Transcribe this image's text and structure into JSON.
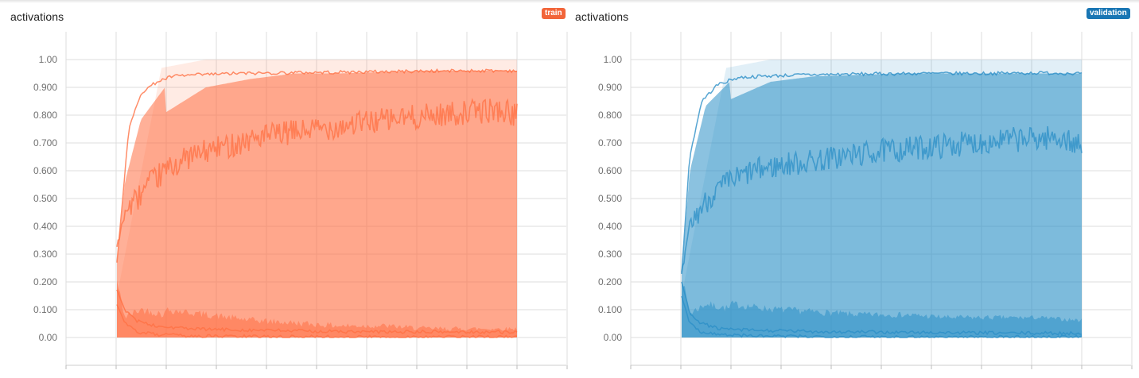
{
  "panels": [
    {
      "id": "train",
      "title": "activations",
      "run_label": "train",
      "run_color": "#f2653a",
      "series_color": "#ff7043"
    },
    {
      "id": "validation",
      "title": "activations",
      "run_label": "validation",
      "run_color": "#1976b4",
      "series_color": "#2c8fc7"
    }
  ],
  "chart_data": [
    {
      "type": "area",
      "run": "train",
      "title": "activations",
      "y_tick_labels": [
        "0.00",
        "0.100",
        "0.200",
        "0.300",
        "0.400",
        "0.500",
        "0.600",
        "0.700",
        "0.800",
        "0.900",
        "1.00"
      ],
      "ylim": [
        0,
        1
      ],
      "grid": true,
      "x_ticks_labeled": false,
      "bands": [
        {
          "name": "max-min",
          "lower": [
            0.0,
            0.0,
            0.0,
            0.0,
            0.0,
            0.0,
            0.0,
            0.0,
            0.0,
            0.0
          ],
          "upper": [
            0.15,
            0.97,
            1.0,
            1.0,
            1.0,
            1.0,
            1.0,
            1.0,
            1.0,
            1.0
          ]
        },
        {
          "name": "outer",
          "lower": [
            0.0,
            0.0,
            0.0,
            0.0,
            0.0,
            0.0,
            0.0,
            0.0,
            0.0,
            0.0
          ],
          "upper": [
            0.27,
            0.8,
            0.9,
            0.93,
            0.95,
            0.95,
            0.955,
            0.96,
            0.96,
            0.96
          ]
        },
        {
          "name": "inner",
          "lower": [
            0.0,
            0.0,
            0.0,
            0.0,
            0.0,
            0.0,
            0.0,
            0.0,
            0.0,
            0.0
          ],
          "upper": [
            0.2,
            0.1,
            0.08,
            0.06,
            0.05,
            0.04,
            0.04,
            0.03,
            0.03,
            0.03
          ]
        }
      ],
      "lines": [
        {
          "name": "upper-percentile",
          "x": [
            0,
            0.03,
            0.06,
            0.1,
            0.14,
            0.2,
            0.3,
            0.45,
            0.6,
            0.75,
            0.9,
            1.0
          ],
          "y": [
            0.27,
            0.75,
            0.88,
            0.92,
            0.94,
            0.945,
            0.95,
            0.953,
            0.955,
            0.958,
            0.96,
            0.96
          ]
        },
        {
          "name": "median",
          "x": [
            0,
            0.02,
            0.05,
            0.08,
            0.12,
            0.18,
            0.25,
            0.35,
            0.5,
            0.65,
            0.8,
            0.95,
            1.0
          ],
          "y": [
            0.32,
            0.45,
            0.5,
            0.55,
            0.6,
            0.65,
            0.68,
            0.72,
            0.75,
            0.78,
            0.8,
            0.82,
            0.8
          ]
        },
        {
          "name": "lower-percentile",
          "x": [
            0,
            0.02,
            0.05,
            0.1,
            0.2,
            0.4,
            0.6,
            0.8,
            1.0
          ],
          "y": [
            0.17,
            0.1,
            0.06,
            0.04,
            0.03,
            0.025,
            0.02,
            0.02,
            0.02
          ]
        },
        {
          "name": "min",
          "x": [
            0,
            0.02,
            0.05,
            0.1,
            0.2,
            0.4,
            0.6,
            0.8,
            1.0
          ],
          "y": [
            0.12,
            0.05,
            0.02,
            0.01,
            0.005,
            0.003,
            0.002,
            0.002,
            0.002
          ]
        }
      ]
    },
    {
      "type": "area",
      "run": "validation",
      "title": "activations",
      "y_tick_labels": [
        "0.00",
        "0.100",
        "0.200",
        "0.300",
        "0.400",
        "0.500",
        "0.600",
        "0.700",
        "0.800",
        "0.900",
        "1.00"
      ],
      "ylim": [
        0,
        1
      ],
      "grid": true,
      "x_ticks_labeled": false,
      "bands": [
        {
          "name": "max-min",
          "lower": [
            0.0,
            0.0,
            0.0,
            0.0,
            0.0,
            0.0,
            0.0,
            0.0,
            0.0,
            0.0
          ],
          "upper": [
            0.15,
            0.97,
            1.0,
            1.0,
            1.0,
            1.0,
            1.0,
            1.0,
            1.0,
            1.0
          ]
        },
        {
          "name": "outer",
          "lower": [
            0.0,
            0.0,
            0.0,
            0.0,
            0.0,
            0.0,
            0.0,
            0.0,
            0.0,
            0.0
          ],
          "upper": [
            0.23,
            0.85,
            0.92,
            0.94,
            0.945,
            0.95,
            0.95,
            0.95,
            0.95,
            0.95
          ]
        },
        {
          "name": "inner",
          "lower": [
            0.0,
            0.0,
            0.0,
            0.0,
            0.0,
            0.0,
            0.0,
            0.0,
            0.0,
            0.0
          ],
          "upper": [
            0.22,
            0.12,
            0.1,
            0.09,
            0.08,
            0.08,
            0.07,
            0.07,
            0.07,
            0.06
          ]
        }
      ],
      "lines": [
        {
          "name": "upper-percentile",
          "x": [
            0,
            0.02,
            0.05,
            0.09,
            0.14,
            0.2,
            0.3,
            0.45,
            0.6,
            0.75,
            0.9,
            1.0
          ],
          "y": [
            0.23,
            0.65,
            0.85,
            0.91,
            0.935,
            0.94,
            0.945,
            0.948,
            0.95,
            0.95,
            0.952,
            0.95
          ]
        },
        {
          "name": "median",
          "x": [
            0,
            0.02,
            0.05,
            0.08,
            0.12,
            0.18,
            0.25,
            0.35,
            0.5,
            0.65,
            0.8,
            0.95,
            1.0
          ],
          "y": [
            0.22,
            0.4,
            0.47,
            0.52,
            0.56,
            0.6,
            0.62,
            0.64,
            0.67,
            0.69,
            0.71,
            0.72,
            0.68
          ]
        },
        {
          "name": "lower-percentile",
          "x": [
            0,
            0.02,
            0.05,
            0.1,
            0.2,
            0.4,
            0.6,
            0.8,
            1.0
          ],
          "y": [
            0.2,
            0.09,
            0.05,
            0.03,
            0.025,
            0.02,
            0.018,
            0.016,
            0.015
          ]
        },
        {
          "name": "min",
          "x": [
            0,
            0.02,
            0.05,
            0.1,
            0.2,
            0.4,
            0.6,
            0.8,
            1.0
          ],
          "y": [
            0.15,
            0.05,
            0.02,
            0.01,
            0.005,
            0.003,
            0.002,
            0.002,
            0.002
          ]
        }
      ]
    }
  ]
}
